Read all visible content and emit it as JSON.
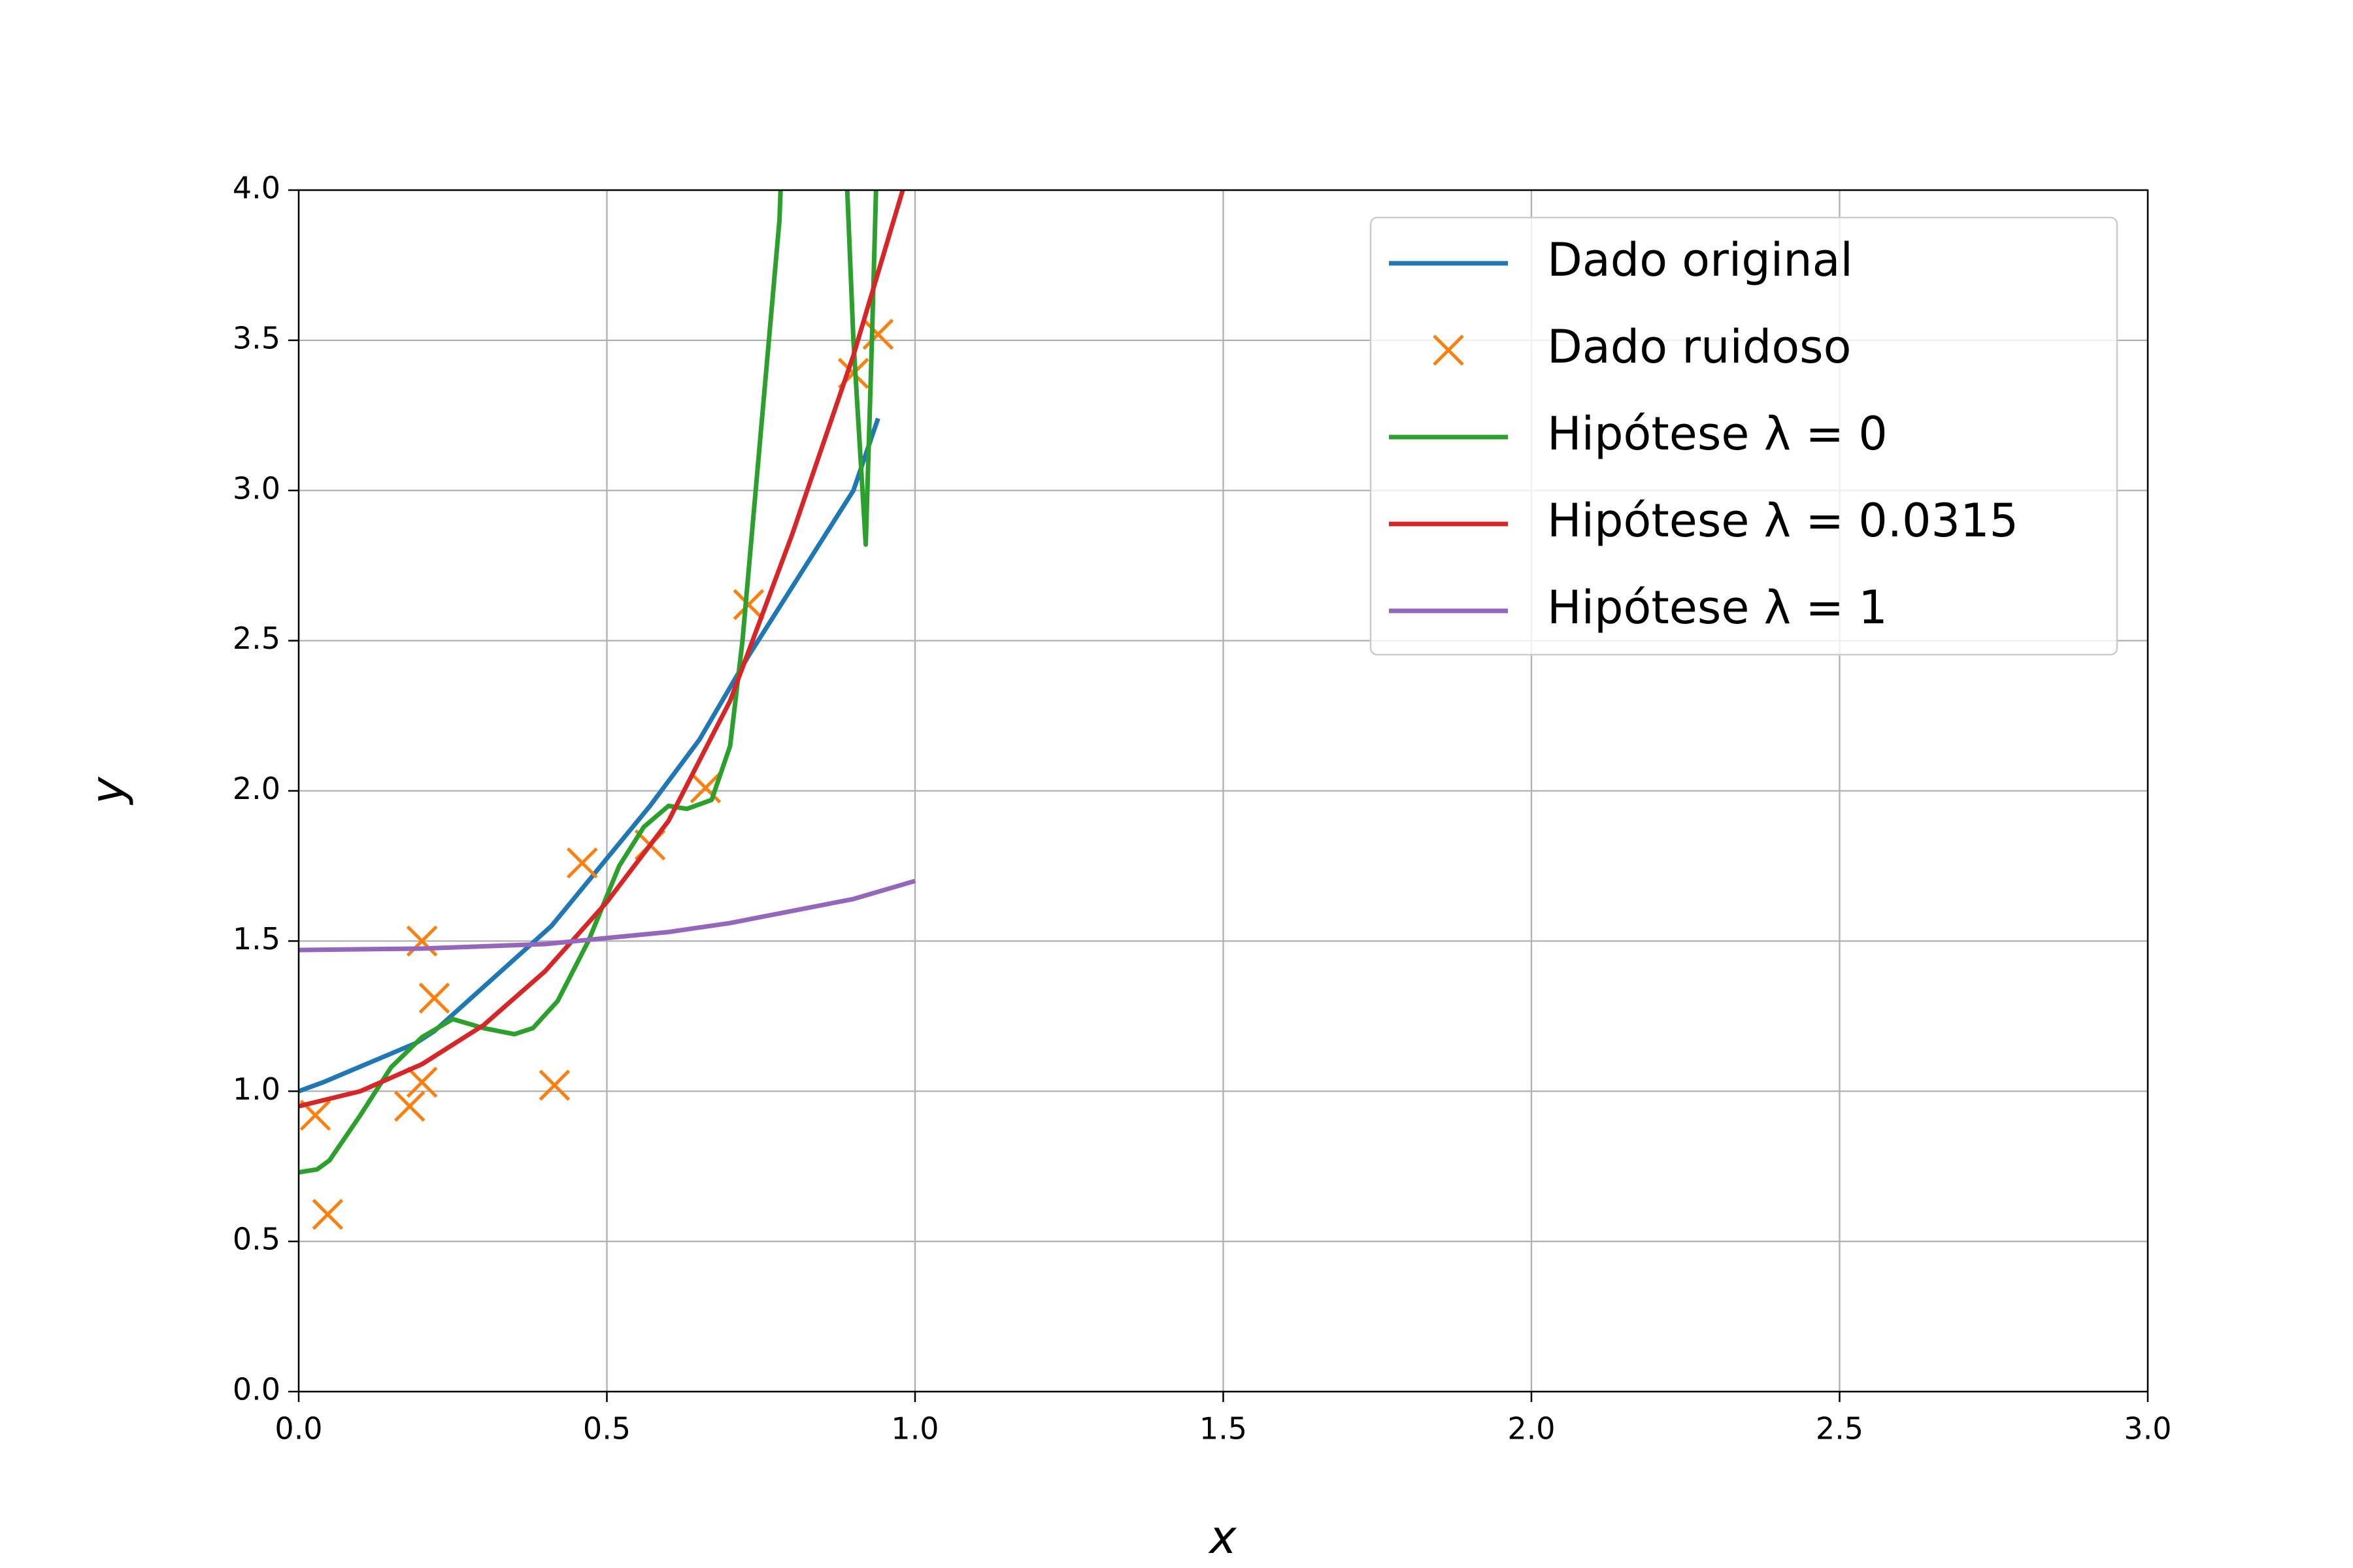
{
  "chart_data": {
    "type": "line",
    "xlabel": "x",
    "ylabel": "y",
    "xlim": [
      0,
      3
    ],
    "ylim": [
      0,
      4
    ],
    "xticks": [
      {
        "value": 0,
        "label": "0.0"
      },
      0.5,
      {
        "value": 1,
        "label": "1.0"
      },
      1.5,
      {
        "value": 2,
        "label": "2.0"
      },
      2.5,
      {
        "value": 3,
        "label": "3.0"
      }
    ],
    "yticks": [
      {
        "value": 0,
        "label": "0.0"
      },
      0.5,
      {
        "value": 1,
        "label": "1.0"
      },
      1.5,
      {
        "value": 2,
        "label": "2.0"
      },
      2.5,
      {
        "value": 3,
        "label": "3.0"
      },
      3.5,
      {
        "value": 4,
        "label": "4.0"
      }
    ],
    "grid": true,
    "legend": "upper right",
    "series": [
      {
        "name": "Dado original",
        "color": "#1f77b4",
        "x": [
          0,
          0.04,
          0.19,
          0.22,
          0.41,
          0.47,
          0.57,
          0.65,
          0.73,
          0.9,
          0.94
        ],
        "values": [
          1.0,
          1.03,
          1.16,
          1.2,
          1.55,
          1.7,
          1.95,
          2.17,
          2.45,
          3.0,
          3.24
        ]
      },
      {
        "name": "Dado ruidoso",
        "color": "#ff7f0e",
        "marker": "x",
        "linestyle": "none",
        "x": [
          0.027,
          0.047,
          0.18,
          0.2,
          0.2,
          0.22,
          0.415,
          0.46,
          0.57,
          0.66,
          0.73,
          0.9,
          0.94
        ],
        "values": [
          0.92,
          0.59,
          0.95,
          1.03,
          1.5,
          1.31,
          1.02,
          1.76,
          1.82,
          2.01,
          2.62,
          3.39,
          3.52
        ]
      },
      {
        "name": "Hipótese λ = 0",
        "color": "#2ca02c",
        "x": [
          0,
          0.03,
          0.05,
          0.1,
          0.15,
          0.2,
          0.25,
          0.3,
          0.35,
          0.38,
          0.42,
          0.47,
          0.52,
          0.56,
          0.6,
          0.63,
          0.67,
          0.7,
          0.72,
          0.75,
          0.78,
          0.8,
          0.87,
          0.9,
          0.92,
          0.93,
          0.95
        ],
        "values": [
          0.73,
          0.74,
          0.77,
          0.92,
          1.08,
          1.18,
          1.24,
          1.21,
          1.19,
          1.21,
          1.3,
          1.5,
          1.75,
          1.88,
          1.95,
          1.94,
          1.97,
          2.15,
          2.5,
          3.2,
          3.9,
          5,
          5,
          3.5,
          2.82,
          3.5,
          5
        ]
      },
      {
        "name": "Hipótese λ = 0.0315",
        "color": "#d62728",
        "x": [
          0,
          0.1,
          0.2,
          0.3,
          0.4,
          0.5,
          0.6,
          0.7,
          0.8,
          0.9,
          0.98
        ],
        "values": [
          0.95,
          1.0,
          1.09,
          1.22,
          1.4,
          1.63,
          1.9,
          2.3,
          2.85,
          3.45,
          4.0
        ]
      },
      {
        "name": "Hipótese λ = 1",
        "color": "#9467bd",
        "x": [
          0,
          0.2,
          0.4,
          0.5,
          0.6,
          0.7,
          0.8,
          0.9,
          1.0
        ],
        "values": [
          1.47,
          1.475,
          1.49,
          1.51,
          1.53,
          1.56,
          1.6,
          1.64,
          1.7
        ]
      }
    ]
  }
}
